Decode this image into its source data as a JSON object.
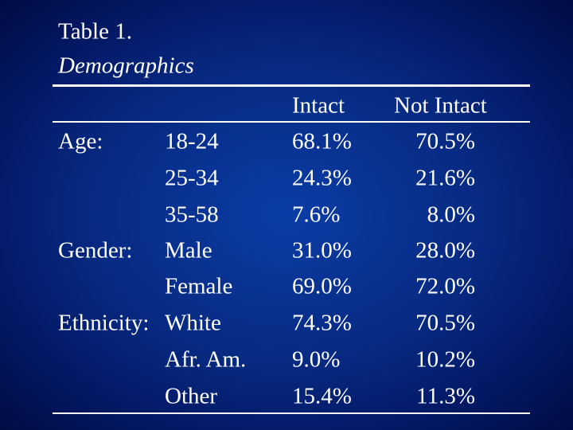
{
  "title": "Table 1.",
  "subtitle": "Demographics",
  "table": {
    "header": [
      "Intact",
      "Not Intact"
    ],
    "rows": [
      [
        "Age:",
        "18-24",
        "68.1%",
        "70.5%"
      ],
      [
        null,
        "25-34",
        "24.3%",
        "21.6%"
      ],
      [
        null,
        "35-58",
        "7.6%",
        "8.0%"
      ],
      [
        "Gender:",
        "Male",
        "31.0%",
        "28.0%"
      ],
      [
        null,
        "Female",
        "69.0%",
        "72.0%"
      ],
      [
        "Ethnicity:",
        "White",
        "74.3%",
        "70.5%"
      ],
      [
        null,
        "Afr. Am.",
        "9.0%",
        "10.2%"
      ],
      [
        null,
        "Other",
        "15.4%",
        "11.3%"
      ]
    ]
  }
}
